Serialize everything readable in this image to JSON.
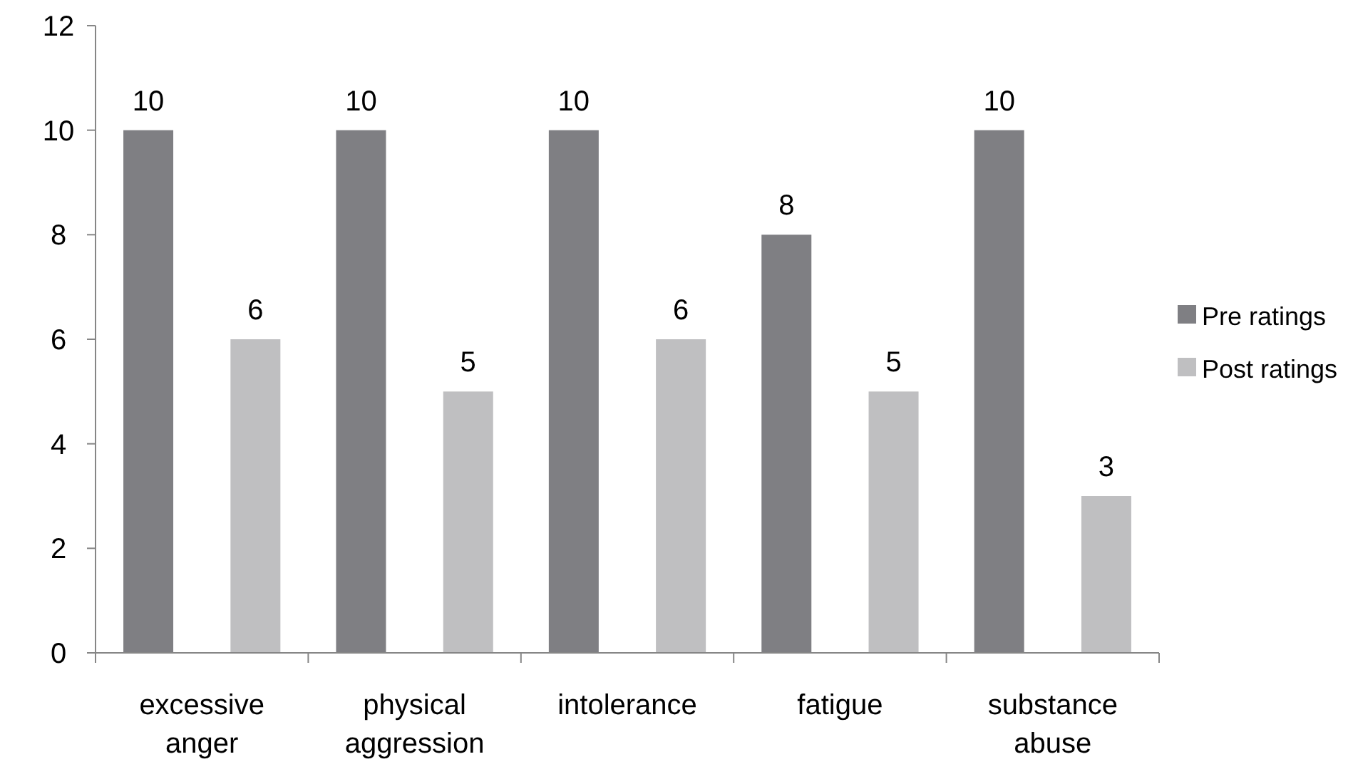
{
  "chart_data": {
    "type": "bar",
    "categories": [
      "excessive anger",
      "physical aggression",
      "intolerance",
      "fatigue",
      "substance abuse"
    ],
    "series": [
      {
        "name": "Pre ratings",
        "color": "#7f7f83",
        "values": [
          10,
          10,
          10,
          8,
          10
        ]
      },
      {
        "name": "Post ratings",
        "color": "#bfbfc1",
        "values": [
          6,
          5,
          6,
          5,
          3
        ]
      }
    ],
    "ylim": [
      0,
      12
    ],
    "yticks": [
      0,
      2,
      4,
      6,
      8,
      10,
      12
    ],
    "grid": false,
    "legend": "right",
    "data_labels": true
  }
}
